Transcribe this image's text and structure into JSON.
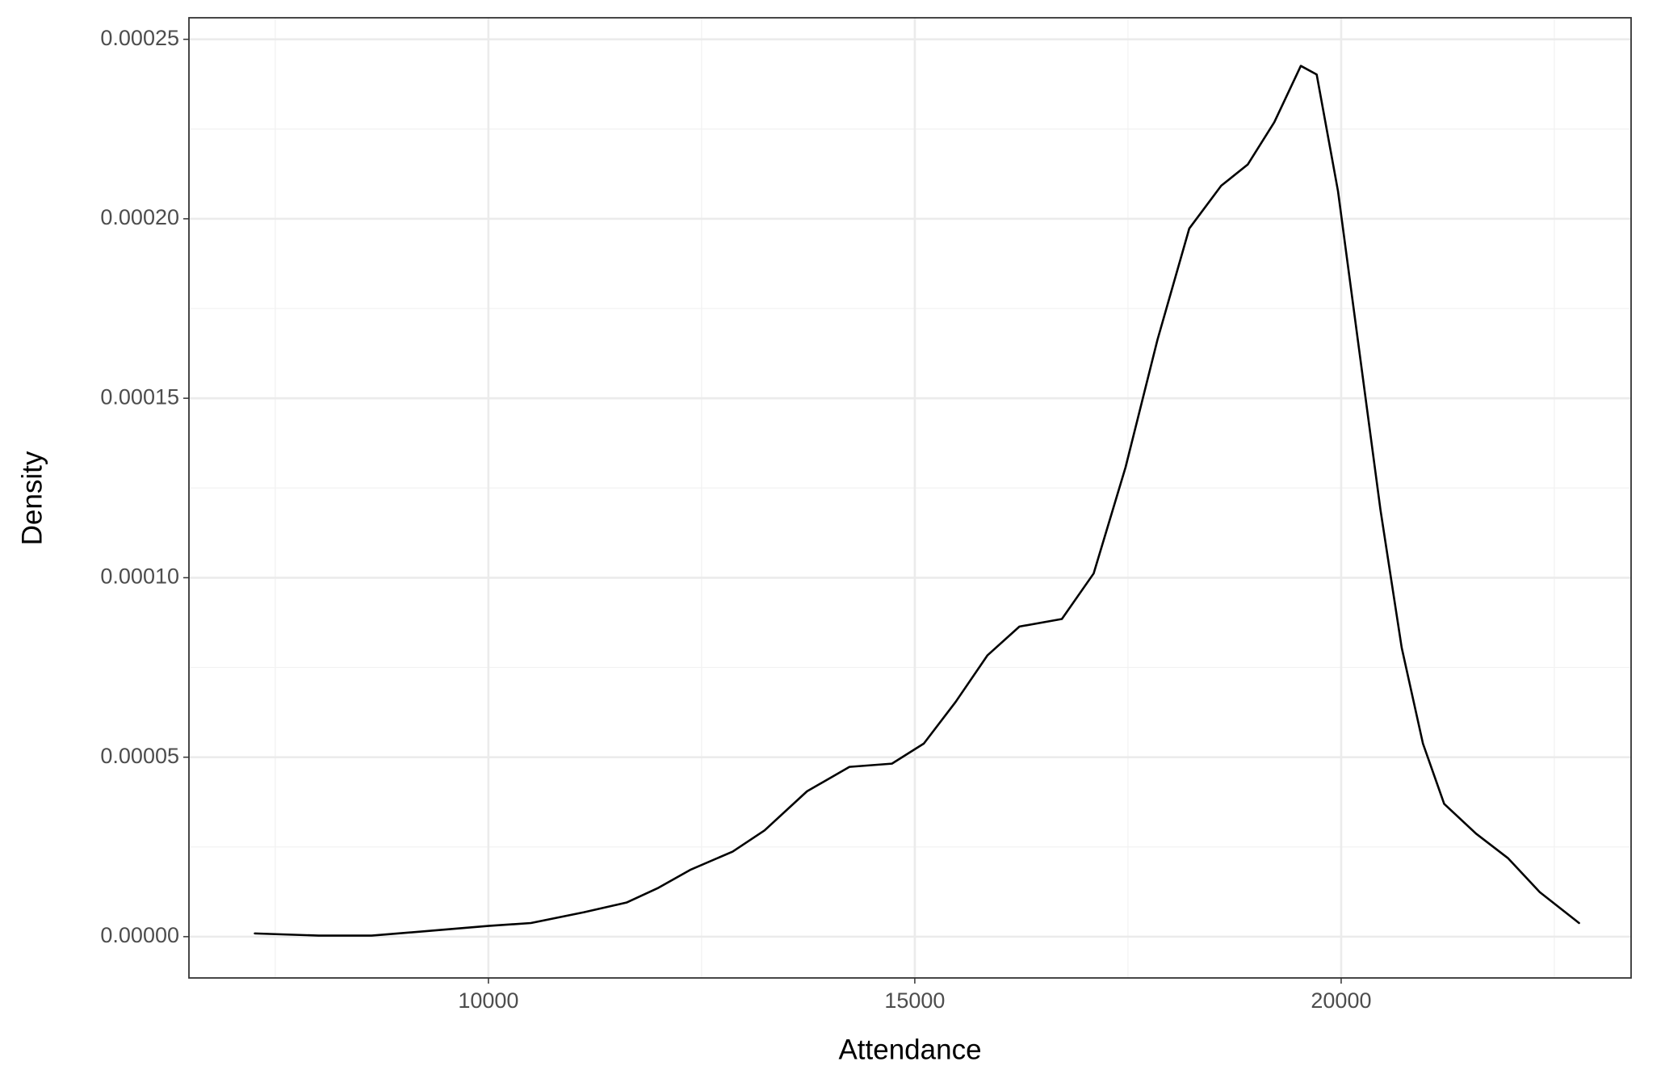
{
  "chart_data": {
    "type": "line",
    "x_label": "Attendance",
    "y_label": "Density",
    "xlim": [
      6488,
      23400
    ],
    "ylim": [
      -1.15e-05,
      0.000256
    ],
    "xticks": [
      10000,
      15000,
      20000
    ],
    "yticks": [
      {
        "value": 0,
        "label": "0.00000"
      },
      {
        "value": 5e-05,
        "label": "0.00005"
      },
      {
        "value": 0.0001,
        "label": "0.00010"
      },
      {
        "value": 0.00015,
        "label": "0.00015"
      },
      {
        "value": 0.0002,
        "label": "0.00020"
      },
      {
        "value": 0.00025,
        "label": "0.00025"
      }
    ],
    "grid": true,
    "series": [
      {
        "color": "#000000",
        "x": [
          7260,
          8008,
          8630,
          9253,
          10000,
          10498,
          11121,
          11619,
          11993,
          12366,
          12864,
          13238,
          13736,
          14234,
          14732,
          15106,
          15479,
          15853,
          16227,
          16725,
          17098,
          17472,
          17846,
          18219,
          18593,
          18904,
          19216,
          19527,
          19713,
          19963,
          20212,
          20461,
          20710,
          20959,
          21208,
          21582,
          21955,
          22329,
          22790
        ],
        "values": [
          9e-07,
          3e-07,
          3e-07,
          1.5e-06,
          3e-06,
          3.8e-06,
          6.8e-06,
          9.5e-06,
          1.36e-05,
          1.86e-05,
          2.37e-05,
          2.96e-05,
          4.05e-05,
          4.73e-05,
          4.82e-05,
          5.38e-05,
          6.54e-05,
          7.84e-05,
          8.64e-05,
          8.85e-05,
          0.0001012,
          0.0001308,
          0.0001663,
          0.0001973,
          0.0002092,
          0.0002151,
          0.0002269,
          0.0002426,
          0.0002402,
          0.0002077,
          0.0001633,
          0.0001189,
          8.05e-05,
          5.38e-05,
          3.7e-05,
          2.87e-05,
          2.19e-05,
          1.24e-05,
          3.8e-06
        ]
      }
    ]
  }
}
